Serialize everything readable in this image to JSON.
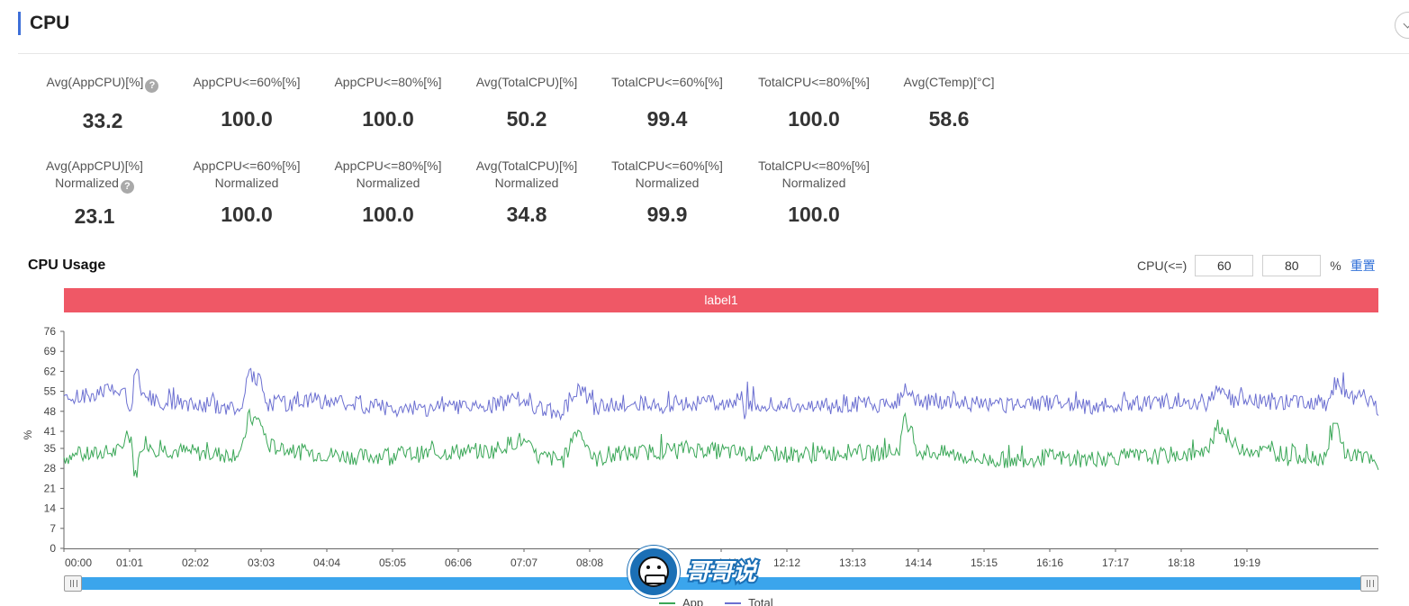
{
  "section": {
    "title": "CPU"
  },
  "metrics_row1": [
    {
      "label": "Avg(AppCPU)[%]",
      "value": "33.2",
      "help": true
    },
    {
      "label": "AppCPU<=60%[%]",
      "value": "100.0"
    },
    {
      "label": "AppCPU<=80%[%]",
      "value": "100.0"
    },
    {
      "label": "Avg(TotalCPU)[%]",
      "value": "50.2"
    },
    {
      "label": "TotalCPU<=60%[%]",
      "value": "99.4"
    },
    {
      "label": "TotalCPU<=80%[%]",
      "value": "100.0"
    },
    {
      "label": "Avg(CTemp)[°C]",
      "value": "58.6"
    }
  ],
  "metrics_row2": [
    {
      "label": "Avg(AppCPU)[%]",
      "label2": "Normalized",
      "value": "23.1",
      "help": true
    },
    {
      "label": "AppCPU<=60%[%]",
      "label2": "Normalized",
      "value": "100.0"
    },
    {
      "label": "AppCPU<=80%[%]",
      "label2": "Normalized",
      "value": "100.0"
    },
    {
      "label": "Avg(TotalCPU)[%]",
      "label2": "Normalized",
      "value": "34.8"
    },
    {
      "label": "TotalCPU<=60%[%]",
      "label2": "Normalized",
      "value": "99.9"
    },
    {
      "label": "TotalCPU<=80%[%]",
      "label2": "Normalized",
      "value": "100.0"
    }
  ],
  "help_icon_glyph": "?",
  "chart_section": {
    "title": "CPU Usage",
    "threshold_label": "CPU(<=)",
    "threshold_low": "60",
    "threshold_high": "80",
    "unit": "%",
    "reset_label": "重置",
    "band_label": "label1",
    "band_color": "#ef5866"
  },
  "watermark": {
    "icon": "cartoon-face-logo-icon",
    "text": "哥哥说"
  },
  "chart_data": {
    "type": "line",
    "ylabel": "%",
    "ylim": [
      0,
      76
    ],
    "yticks": [
      0,
      7,
      14,
      21,
      28,
      35,
      41,
      48,
      55,
      62,
      69,
      76
    ],
    "xlabels": [
      "00:00",
      "01:01",
      "02:02",
      "03:03",
      "04:04",
      "05:05",
      "06:06",
      "07:07",
      "08:08",
      "",
      "",
      "12:12",
      "13:13",
      "14:14",
      "15:15",
      "16:16",
      "17:17",
      "18:18",
      "19:19"
    ],
    "xlabel_fragment": "1:11",
    "x_range": [
      0,
      20
    ],
    "grid": false,
    "legend_position": "bottom",
    "series": [
      {
        "name": "App",
        "color": "#3aa757",
        "x": [
          0,
          0.5,
          0.83,
          1.02,
          1.08,
          1.2,
          1.4,
          1.8,
          2.2,
          2.5,
          2.72,
          2.8,
          3.0,
          3.1,
          3.5,
          4.0,
          4.5,
          5.0,
          5.5,
          6.0,
          6.5,
          6.7,
          6.95,
          7.2,
          7.6,
          7.8,
          7.95,
          8.05,
          8.5,
          9.0,
          9.5,
          10.0,
          10.5,
          11.0,
          11.5,
          12.0,
          12.3,
          12.5,
          12.7,
          12.8,
          13.0,
          13.5,
          14.0,
          14.5,
          15.0,
          15.5,
          16.0,
          16.5,
          17.0,
          17.4,
          17.55,
          17.8,
          18.2,
          18.6,
          19.0,
          19.2,
          19.35,
          19.5,
          19.8,
          20.0
        ],
        "y": [
          32,
          33,
          34,
          40,
          24,
          38,
          35,
          34,
          33,
          33,
          34,
          46,
          44,
          36,
          34,
          33,
          32,
          33,
          33,
          34,
          34,
          36,
          38,
          32,
          31,
          42,
          38,
          31,
          33,
          34,
          35,
          34,
          33,
          33,
          33,
          34,
          33,
          34,
          34,
          46,
          34,
          33,
          31,
          31,
          32,
          31,
          32,
          32,
          33,
          33,
          44,
          36,
          34,
          33,
          32,
          32,
          44,
          33,
          32,
          28
        ]
      },
      {
        "name": "Total",
        "color": "#6b6fd1",
        "x": [
          0,
          0.5,
          0.83,
          1.02,
          1.08,
          1.2,
          1.4,
          1.8,
          2.2,
          2.5,
          2.72,
          2.8,
          3.0,
          3.1,
          3.5,
          4.0,
          4.5,
          5.0,
          5.5,
          6.0,
          6.5,
          6.7,
          6.95,
          7.2,
          7.6,
          7.8,
          7.95,
          8.05,
          8.5,
          9.0,
          9.5,
          10.0,
          10.5,
          11.0,
          11.5,
          12.0,
          12.3,
          12.5,
          12.7,
          12.8,
          13.0,
          13.5,
          14.0,
          14.5,
          15.0,
          15.5,
          16.0,
          16.5,
          17.0,
          17.4,
          17.55,
          17.8,
          18.2,
          18.6,
          19.0,
          19.2,
          19.35,
          19.5,
          19.8,
          20.0
        ],
        "y": [
          52,
          54,
          57,
          50,
          64,
          55,
          51,
          51,
          50,
          49,
          50,
          61,
          58,
          51,
          51,
          52,
          50,
          49,
          49,
          50,
          50,
          51,
          53,
          49,
          48,
          56,
          53,
          49,
          51,
          50,
          51,
          51,
          50,
          50,
          49,
          51,
          50,
          51,
          52,
          57,
          51,
          52,
          50,
          50,
          51,
          50,
          50,
          51,
          52,
          51,
          57,
          52,
          51,
          51,
          50,
          51,
          58,
          53,
          53,
          49
        ]
      }
    ]
  }
}
